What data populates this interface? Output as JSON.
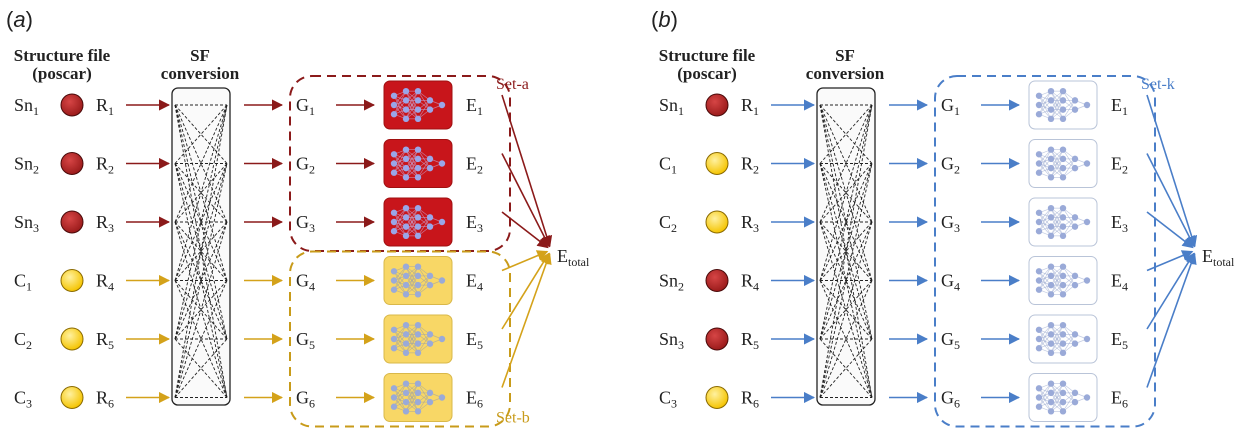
{
  "colors": {
    "sn": "#9b1b1b",
    "c": "#f5c400",
    "arrow_sn": "#8b1a1a",
    "arrow_c": "#d4a21a",
    "arrow_k": "#4a7ec8",
    "net_sn_bg": "#c8151b",
    "net_c_bg": "#f8d766",
    "net_k_bg": "#ffffff",
    "set_a": "#8b1a1a",
    "set_b": "#c89b1a",
    "set_k": "#4a7ec8"
  },
  "icons": {
    "atom": "sphere-icon",
    "network": "neural-network-icon"
  },
  "panels": [
    {
      "label": "a",
      "structure_header": [
        "Structure file",
        "(poscar)"
      ],
      "sf_header": [
        "SF",
        "conversion"
      ],
      "rows": [
        {
          "elem": "Sn",
          "elem_sub": "1",
          "kind": "sn",
          "r_sub": "1",
          "g_sub": "1",
          "e_sub": "1",
          "arrow": "sn",
          "net": "sn"
        },
        {
          "elem": "Sn",
          "elem_sub": "2",
          "kind": "sn",
          "r_sub": "2",
          "g_sub": "2",
          "e_sub": "2",
          "arrow": "sn",
          "net": "sn"
        },
        {
          "elem": "Sn",
          "elem_sub": "3",
          "kind": "sn",
          "r_sub": "3",
          "g_sub": "3",
          "e_sub": "3",
          "arrow": "sn",
          "net": "sn"
        },
        {
          "elem": "C",
          "elem_sub": "1",
          "kind": "c",
          "r_sub": "4",
          "g_sub": "4",
          "e_sub": "4",
          "arrow": "c",
          "net": "c"
        },
        {
          "elem": "C",
          "elem_sub": "2",
          "kind": "c",
          "r_sub": "5",
          "g_sub": "5",
          "e_sub": "5",
          "arrow": "c",
          "net": "c"
        },
        {
          "elem": "C",
          "elem_sub": "3",
          "kind": "c",
          "r_sub": "6",
          "g_sub": "6",
          "e_sub": "6",
          "arrow": "c",
          "net": "c"
        }
      ],
      "sets": [
        {
          "label": "Set-a",
          "color": "set_a",
          "rows": [
            0,
            2
          ],
          "label_pos": "top"
        },
        {
          "label": "Set-b",
          "color": "set_b",
          "rows": [
            3,
            5
          ],
          "label_pos": "bottom"
        }
      ],
      "total": {
        "main": "E",
        "sub": "total"
      }
    },
    {
      "label": "b",
      "structure_header": [
        "Structure file",
        "(poscar)"
      ],
      "sf_header": [
        "SF",
        "conversion"
      ],
      "rows": [
        {
          "elem": "Sn",
          "elem_sub": "1",
          "kind": "sn",
          "r_sub": "1",
          "g_sub": "1",
          "e_sub": "1",
          "arrow": "k",
          "net": "k"
        },
        {
          "elem": "C",
          "elem_sub": "1",
          "kind": "c",
          "r_sub": "2",
          "g_sub": "2",
          "e_sub": "2",
          "arrow": "k",
          "net": "k"
        },
        {
          "elem": "C",
          "elem_sub": "2",
          "kind": "c",
          "r_sub": "3",
          "g_sub": "3",
          "e_sub": "3",
          "arrow": "k",
          "net": "k"
        },
        {
          "elem": "Sn",
          "elem_sub": "2",
          "kind": "sn",
          "r_sub": "4",
          "g_sub": "4",
          "e_sub": "4",
          "arrow": "k",
          "net": "k"
        },
        {
          "elem": "Sn",
          "elem_sub": "3",
          "kind": "sn",
          "r_sub": "5",
          "g_sub": "5",
          "e_sub": "5",
          "arrow": "k",
          "net": "k"
        },
        {
          "elem": "C",
          "elem_sub": "3",
          "kind": "c",
          "r_sub": "6",
          "g_sub": "6",
          "e_sub": "6",
          "arrow": "k",
          "net": "k"
        }
      ],
      "sets": [
        {
          "label": "Set-k",
          "color": "set_k",
          "rows": [
            0,
            5
          ],
          "label_pos": "top"
        }
      ],
      "total": {
        "main": "E",
        "sub": "total"
      }
    }
  ],
  "shared_letters": {
    "r": "R",
    "g": "G",
    "e": "E"
  }
}
